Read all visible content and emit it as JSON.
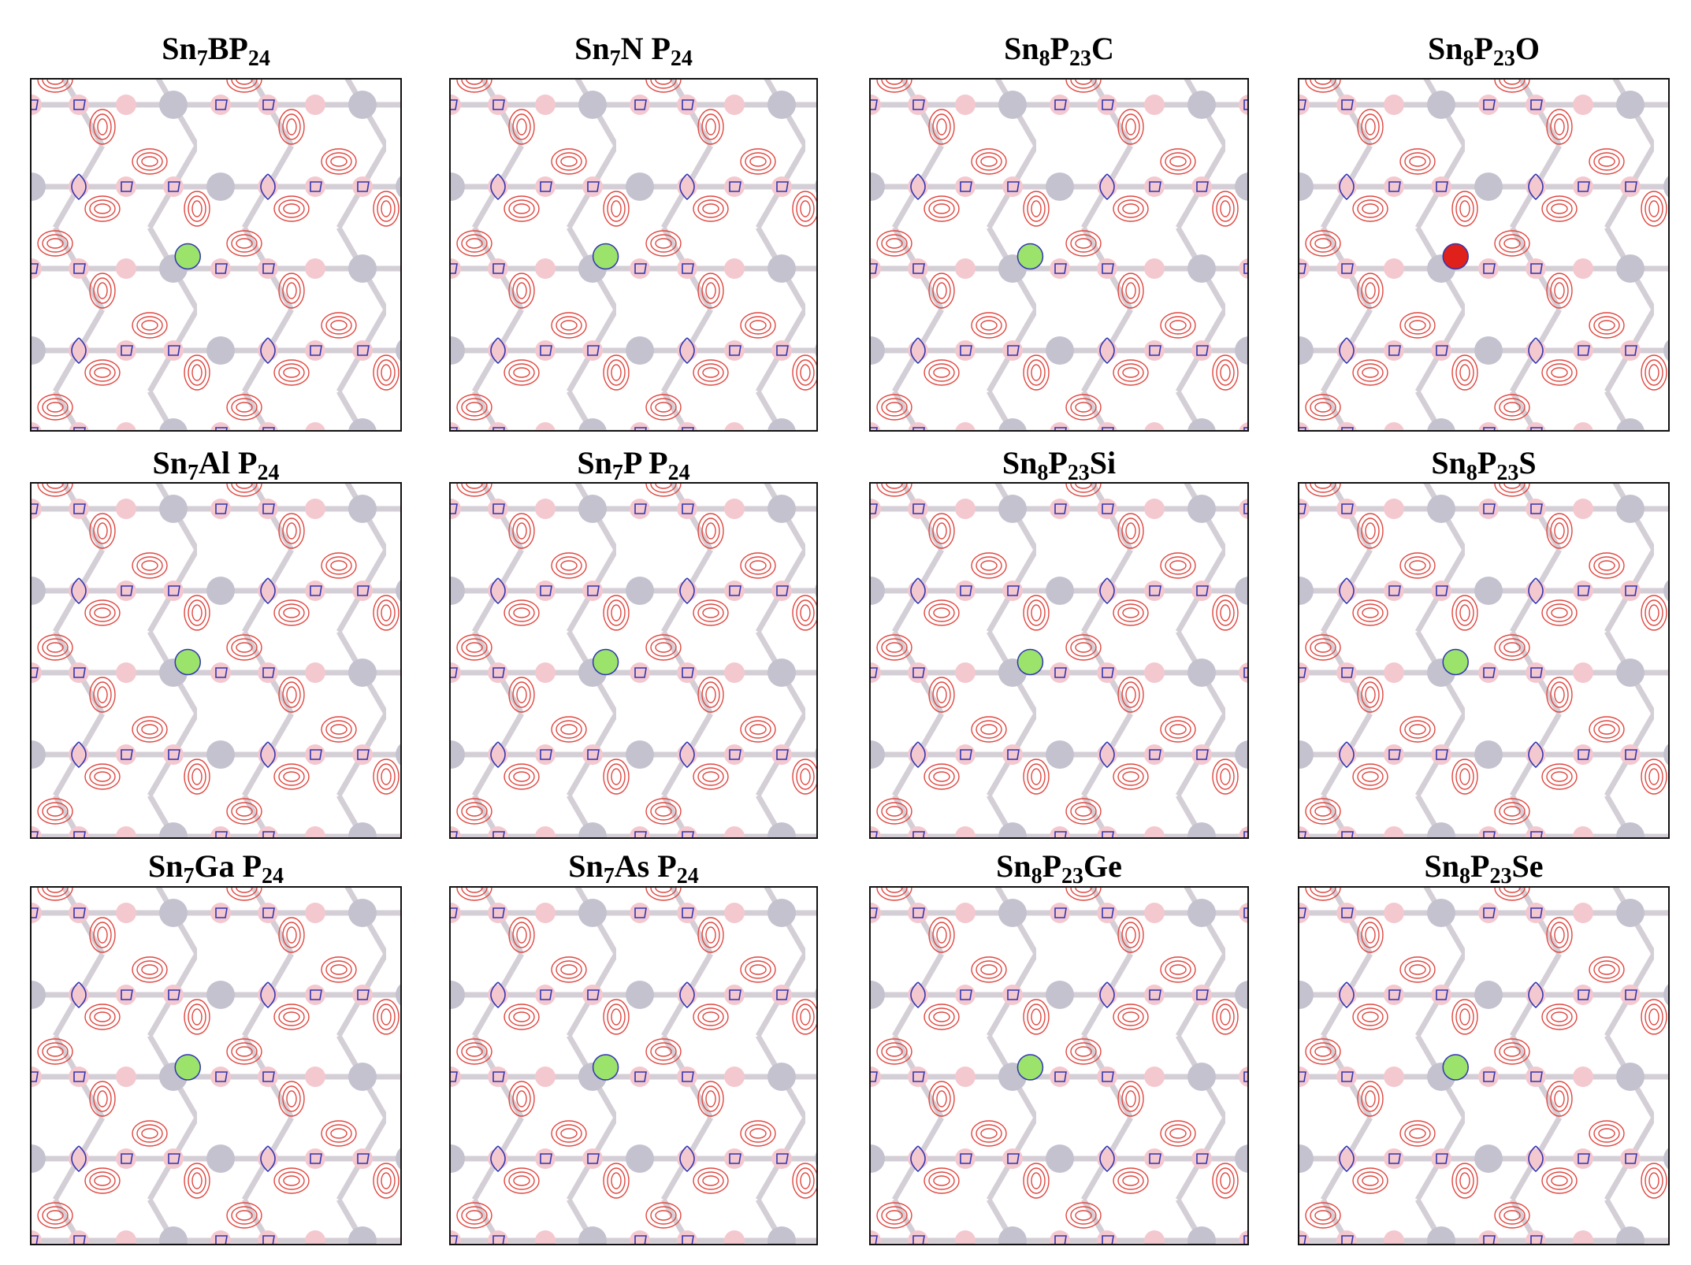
{
  "panels": [
    {
      "title": [
        "Sn",
        "7",
        "BP",
        "24"
      ]
    },
    {
      "title": [
        "Sn",
        "7",
        "N P",
        "24"
      ]
    },
    {
      "title": [
        "Sn",
        "8",
        "P",
        "23",
        "C"
      ]
    },
    {
      "title": [
        "Sn",
        "8",
        "P",
        "23",
        "O"
      ]
    },
    {
      "title": [
        "Sn",
        "7",
        "Al P",
        "24"
      ]
    },
    {
      "title": [
        "Sn",
        "7",
        "P P",
        "24"
      ]
    },
    {
      "title": [
        "Sn",
        "8",
        "P",
        "23",
        "Si"
      ]
    },
    {
      "title": [
        "Sn",
        "8",
        "P",
        "23",
        "S"
      ]
    },
    {
      "title": [
        "Sn",
        "7",
        "Ga P",
        "24"
      ]
    },
    {
      "title": [
        "Sn",
        "7",
        "As P",
        "24"
      ]
    },
    {
      "title": [
        "Sn",
        "8",
        "P",
        "23",
        "Ge"
      ]
    },
    {
      "title": [
        "Sn",
        "8",
        "P",
        "23",
        "Se"
      ]
    }
  ]
}
